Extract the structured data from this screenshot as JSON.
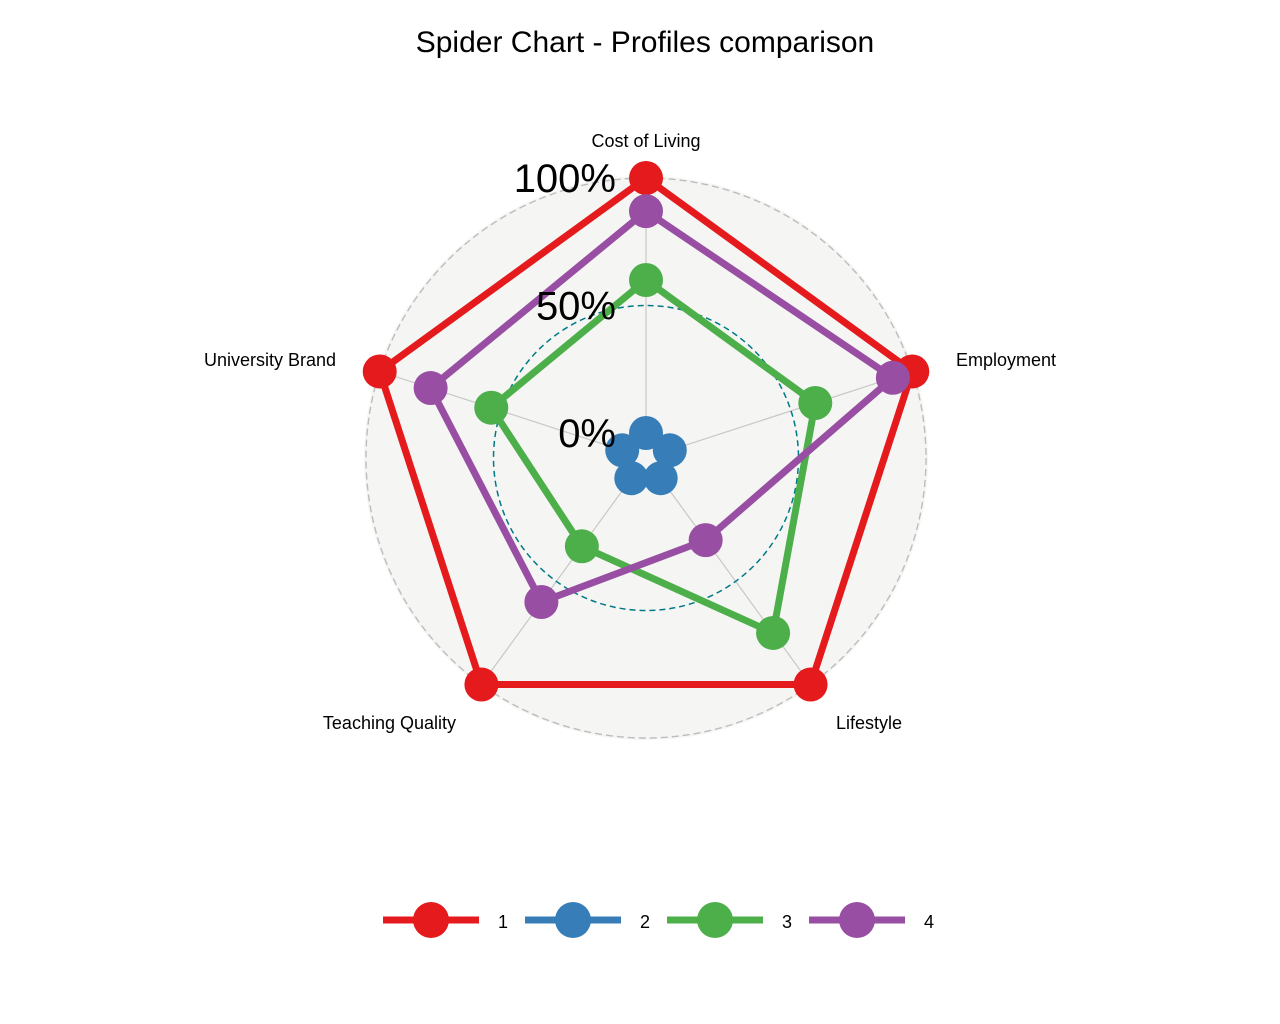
{
  "chart_data": {
    "type": "radar",
    "title": "Spider Chart - Profiles comparison",
    "axes": [
      "Cost of Living",
      "Employment",
      "Lifestyle",
      "Teaching Quality",
      "University Brand"
    ],
    "grid_labels": [
      "0%",
      "50%",
      "100%"
    ],
    "grid_values": [
      0,
      0.5,
      1
    ],
    "legend_position": "bottom",
    "series": [
      {
        "name": "1",
        "color": "#E41A1C",
        "values": [
          1.0,
          1.0,
          1.0,
          1.0,
          1.0
        ]
      },
      {
        "name": "2",
        "color": "#377EB8",
        "values": [
          0.0,
          0.0,
          0.0,
          0.0,
          0.0
        ]
      },
      {
        "name": "3",
        "color": "#4DAF4A",
        "values": [
          0.6,
          0.6,
          0.75,
          0.33,
          0.54
        ]
      },
      {
        "name": "4",
        "color": "#984EA3",
        "values": [
          0.87,
          0.92,
          0.3,
          0.6,
          0.79
        ]
      }
    ],
    "colors": {
      "panel_fill": "#F5F5F3",
      "outer_circle": "#BDBDBD",
      "mid_circle": "#007A87",
      "spokes": "#C8C8C8"
    }
  }
}
